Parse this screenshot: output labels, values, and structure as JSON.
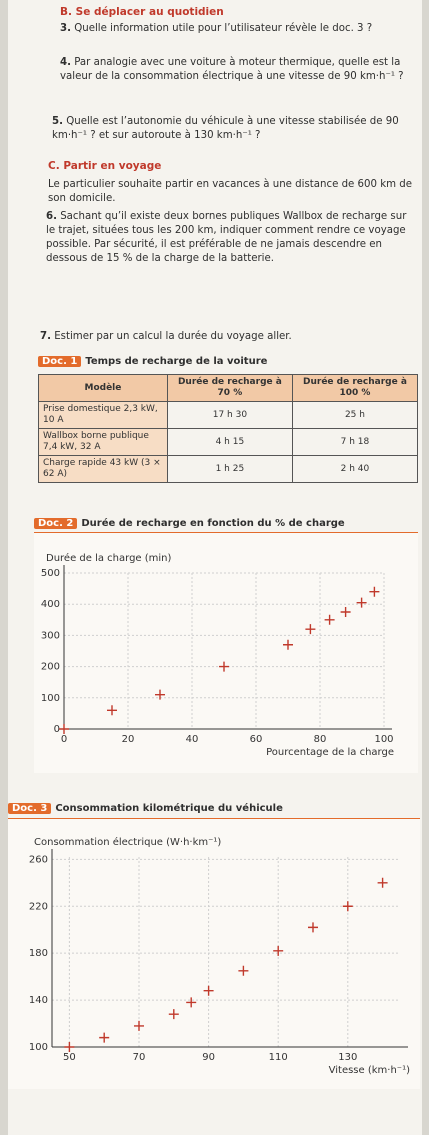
{
  "section_b": "B. Se déplacer au quotidien",
  "questions_b": [
    {
      "num": "3.",
      "text": "Quelle information utile pour l’utilisateur révèle le doc. 3 ?"
    },
    {
      "num": "4.",
      "text": "Par analogie avec une voiture à moteur thermique, quelle est la valeur de la consommation électrique à une vitesse de 90 km·h⁻¹ ?"
    },
    {
      "num": "5.",
      "text": "Quelle est l’autonomie du véhicule à une vitesse stabilisée de 90 km·h⁻¹ ? et sur autoroute à 130 km·h⁻¹ ?"
    }
  ],
  "section_c": "C. Partir en voyage",
  "intro_c": "Le particulier souhaite partir en vacances à une distance de 600 km de son domicile.",
  "questions_c": [
    {
      "num": "6.",
      "text": "Sachant qu’il existe deux bornes publiques Wallbox de recharge sur le trajet, situées tous les 200 km, indiquer comment rendre ce voyage possible. Par sécurité, il est préférable de ne jamais descendre en dessous de 15 % de la charge de la batterie."
    },
    {
      "num": "7.",
      "text": "Estimer par un calcul la durée du voyage aller."
    }
  ],
  "doc1": {
    "badge": "Doc. 1",
    "title": "Temps de recharge de la voiture",
    "headers": [
      "Modèle",
      "Durée de recharge à 70 %",
      "Durée de recharge à 100 %"
    ],
    "rows": [
      {
        "model": "Prise domestique 2,3 kW, 10 A",
        "t70": "17 h 30",
        "t100": "25 h"
      },
      {
        "model": "Wallbox borne publique 7,4 kW, 32 A",
        "t70": "4 h 15",
        "t100": "7 h 18"
      },
      {
        "model": "Charge rapide 43 kW (3 × 62 A)",
        "t70": "1 h 25",
        "t100": "2 h 40"
      }
    ]
  },
  "doc2": {
    "badge": "Doc. 2",
    "title": "Durée de recharge en fonction du % de charge",
    "chart_data": {
      "type": "scatter",
      "ylabel": "Durée de la charge (min)",
      "xlabel": "Pourcentage de la charge",
      "xlim": [
        0,
        100
      ],
      "ylim": [
        0,
        500
      ],
      "x_ticks": [
        0,
        20,
        40,
        60,
        80,
        100
      ],
      "y_ticks": [
        0,
        100,
        200,
        300,
        400,
        500
      ],
      "points": [
        [
          0,
          0
        ],
        [
          15,
          60
        ],
        [
          30,
          110
        ],
        [
          50,
          200
        ],
        [
          70,
          270
        ],
        [
          77,
          320
        ],
        [
          83,
          350
        ],
        [
          88,
          375
        ],
        [
          93,
          405
        ],
        [
          97,
          440
        ]
      ]
    }
  },
  "doc3": {
    "badge": "Doc. 3",
    "title": "Consommation kilométrique du véhicule",
    "chart_data": {
      "type": "scatter",
      "ylabel": "Consommation électrique (W·h·km⁻¹)",
      "xlabel": "Vitesse (km·h⁻¹)",
      "xlim": [
        45,
        145
      ],
      "ylim": [
        100,
        262
      ],
      "x_ticks": [
        50,
        70,
        90,
        110,
        130
      ],
      "y_ticks": [
        100,
        140,
        180,
        220,
        260
      ],
      "points": [
        [
          50,
          100
        ],
        [
          60,
          108
        ],
        [
          70,
          118
        ],
        [
          80,
          128
        ],
        [
          85,
          138
        ],
        [
          90,
          148
        ],
        [
          100,
          165
        ],
        [
          110,
          182
        ],
        [
          120,
          202
        ],
        [
          130,
          220
        ],
        [
          140,
          240
        ]
      ]
    }
  }
}
